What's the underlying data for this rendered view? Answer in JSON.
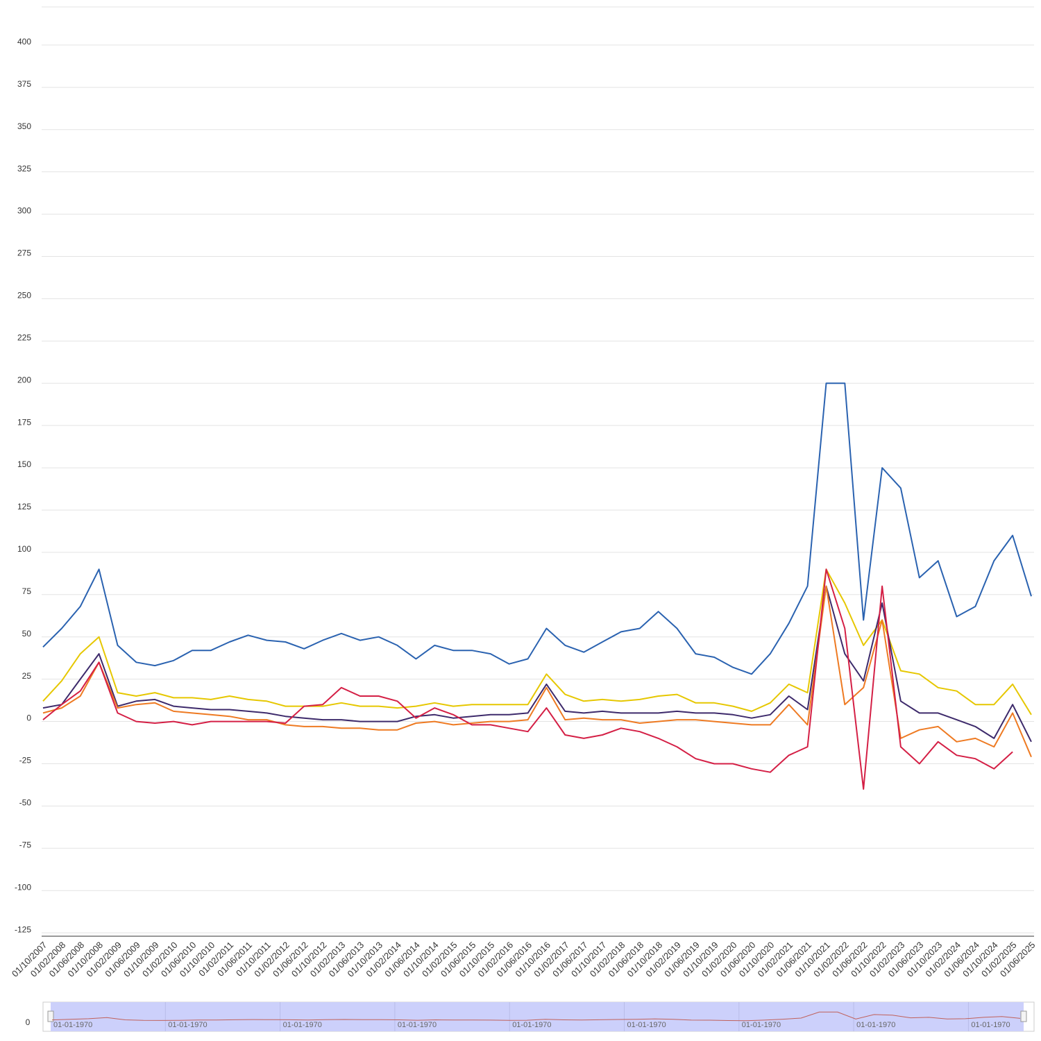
{
  "chart_data": {
    "type": "line",
    "categories": [
      "01/10/2007",
      "01/02/2008",
      "01/06/2008",
      "01/10/2008",
      "01/02/2009",
      "01/06/2009",
      "01/10/2009",
      "01/02/2010",
      "01/06/2010",
      "01/10/2010",
      "01/02/2011",
      "01/06/2011",
      "01/10/2011",
      "01/02/2012",
      "01/06/2012",
      "01/10/2012",
      "01/02/2013",
      "01/06/2013",
      "01/10/2013",
      "01/02/2014",
      "01/06/2014",
      "01/10/2014",
      "01/02/2015",
      "01/06/2015",
      "01/10/2015",
      "01/02/2016",
      "01/06/2016",
      "01/10/2016",
      "01/02/2017",
      "01/06/2017",
      "01/10/2017",
      "01/02/2018",
      "01/06/2018",
      "01/10/2018",
      "01/02/2019",
      "01/06/2019",
      "01/10/2019",
      "01/02/2020",
      "01/06/2020",
      "01/10/2020",
      "01/02/2021",
      "01/06/2021",
      "01/10/2021",
      "01/02/2022",
      "01/06/2022",
      "01/10/2022",
      "01/02/2023",
      "01/06/2023",
      "01/10/2023",
      "01/02/2024",
      "01/06/2024",
      "01/10/2024",
      "01/02/2025",
      "01/06/2025"
    ],
    "series": [
      {
        "color": "#2a62b0",
        "values": [
          44,
          55,
          68,
          90,
          45,
          35,
          33,
          36,
          42,
          42,
          47,
          51,
          48,
          47,
          43,
          48,
          52,
          48,
          50,
          45,
          37,
          45,
          42,
          42,
          40,
          34,
          37,
          55,
          45,
          41,
          47,
          53,
          55,
          65,
          55,
          40,
          38,
          32,
          28,
          40,
          58,
          80,
          200,
          200,
          60,
          150,
          138,
          85,
          95,
          62,
          68,
          95,
          110,
          74
        ]
      },
      {
        "color": "#e6c700",
        "values": [
          12,
          24,
          40,
          50,
          17,
          15,
          17,
          14,
          14,
          13,
          15,
          13,
          12,
          9,
          9,
          9,
          11,
          9,
          9,
          8,
          9,
          11,
          9,
          10,
          10,
          10,
          10,
          28,
          16,
          12,
          13,
          12,
          13,
          15,
          16,
          11,
          11,
          9,
          6,
          11,
          22,
          17,
          90,
          70,
          45,
          60,
          30,
          28,
          20,
          18,
          10,
          10,
          22,
          4
        ]
      },
      {
        "color": "#3d2a6b",
        "values": [
          8,
          10,
          25,
          40,
          9,
          12,
          13,
          9,
          8,
          7,
          7,
          6,
          5,
          3,
          2,
          1,
          1,
          0,
          0,
          0,
          3,
          4,
          2,
          3,
          4,
          4,
          5,
          22,
          6,
          5,
          6,
          5,
          5,
          5,
          6,
          5,
          5,
          4,
          2,
          4,
          15,
          7,
          80,
          40,
          24,
          70,
          12,
          5,
          5,
          1,
          -3,
          -10,
          10,
          -12
        ]
      },
      {
        "color": "#ee7a22",
        "values": [
          5,
          8,
          15,
          35,
          8,
          10,
          11,
          6,
          5,
          4,
          3,
          1,
          1,
          -2,
          -3,
          -3,
          -4,
          -4,
          -5,
          -5,
          -1,
          0,
          -2,
          -1,
          0,
          0,
          1,
          20,
          1,
          2,
          1,
          1,
          -1,
          0,
          1,
          1,
          0,
          -1,
          -2,
          -2,
          10,
          -2,
          80,
          10,
          20,
          60,
          -10,
          -5,
          -3,
          -12,
          -10,
          -15,
          5,
          -21
        ]
      },
      {
        "color": "#d41f45",
        "values": [
          1,
          10,
          18,
          35,
          5,
          0,
          -1,
          0,
          -2,
          0,
          0,
          0,
          0,
          -1,
          9,
          10,
          20,
          15,
          15,
          12,
          2,
          8,
          4,
          -2,
          -2,
          -4,
          -6,
          8,
          -8,
          -10,
          -8,
          -4,
          -6,
          -10,
          -15,
          -22,
          -25,
          -25,
          -28,
          -30,
          -20,
          -15,
          90,
          55,
          -40,
          80,
          -15,
          -25,
          -12,
          -20,
          -22,
          -28,
          -18,
          null
        ]
      }
    ],
    "ylim": [
      -127,
      425
    ],
    "yticks": [
      -125,
      -100,
      -75,
      -50,
      -25,
      0,
      25,
      50,
      75,
      100,
      125,
      150,
      175,
      200,
      225,
      250,
      275,
      300,
      325,
      350,
      375,
      400
    ],
    "grid": true,
    "navigator": {
      "y_label": 0,
      "date_labels": [
        "01-01-1970",
        "01-01-1970",
        "01-01-1970",
        "01-01-1970",
        "01-01-1970",
        "01-01-1970",
        "01-01-1970",
        "01-01-1970",
        "01-01-1970"
      ]
    }
  }
}
